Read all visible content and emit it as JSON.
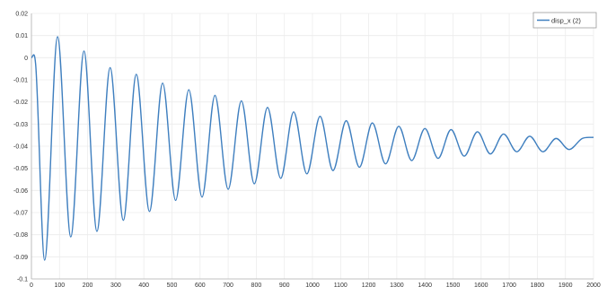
{
  "chart_data": {
    "type": "line",
    "title": "",
    "xlabel": "",
    "ylabel": "",
    "xlim": [
      0,
      2000
    ],
    "ylim": [
      -0.1,
      0.02
    ],
    "x_ticks": [
      0,
      100,
      200,
      300,
      400,
      500,
      600,
      700,
      800,
      900,
      1000,
      1100,
      1200,
      1300,
      1400,
      1500,
      1600,
      1700,
      1800,
      1900,
      2000
    ],
    "y_ticks": [
      0.02,
      0.01,
      0,
      -0.01,
      -0.02,
      -0.03,
      -0.04,
      -0.05,
      -0.06,
      -0.07,
      -0.08,
      -0.09,
      -0.1
    ],
    "x_tick_labels": [
      "0",
      "100",
      "200",
      "300",
      "400",
      "500",
      "600",
      "700",
      "800",
      "900",
      "1000",
      "1100",
      "1200",
      "1300",
      "1400",
      "1500",
      "1600",
      "1700",
      "1800",
      "1900",
      "2000"
    ],
    "y_tick_labels": [
      "0.02",
      "0.01",
      "0",
      "-0.01",
      "-0.02",
      "-0.03",
      "-0.04",
      "-0.05",
      "-0.06",
      "-0.07",
      "-0.08",
      "-0.09",
      "-0.1"
    ],
    "grid": true,
    "legend_position": "top-right",
    "series": [
      {
        "name": "disp_x (2)",
        "color": "#3f7fbf",
        "x": [
          0,
          15,
          47,
          93,
          140,
          187,
          233,
          280,
          327,
          373,
          420,
          467,
          513,
          560,
          607,
          653,
          700,
          747,
          793,
          840,
          887,
          933,
          980,
          1027,
          1073,
          1120,
          1167,
          1213,
          1260,
          1307,
          1353,
          1400,
          1447,
          1493,
          1540,
          1587,
          1633,
          1680,
          1727,
          1773,
          1820,
          1867,
          1913,
          1960,
          2000
        ],
        "y": [
          0,
          -0.003,
          -0.0915,
          0.0095,
          -0.081,
          0.003,
          -0.0785,
          -0.0045,
          -0.0735,
          -0.0075,
          -0.0695,
          -0.0115,
          -0.0645,
          -0.0145,
          -0.063,
          -0.017,
          -0.0595,
          -0.0195,
          -0.057,
          -0.0225,
          -0.0545,
          -0.0245,
          -0.0525,
          -0.0265,
          -0.051,
          -0.0285,
          -0.0495,
          -0.0295,
          -0.048,
          -0.031,
          -0.0465,
          -0.032,
          -0.0455,
          -0.0325,
          -0.0445,
          -0.0335,
          -0.0435,
          -0.0345,
          -0.0425,
          -0.0355,
          -0.0425,
          -0.0365,
          -0.0415,
          -0.0365,
          -0.036
        ]
      }
    ]
  }
}
